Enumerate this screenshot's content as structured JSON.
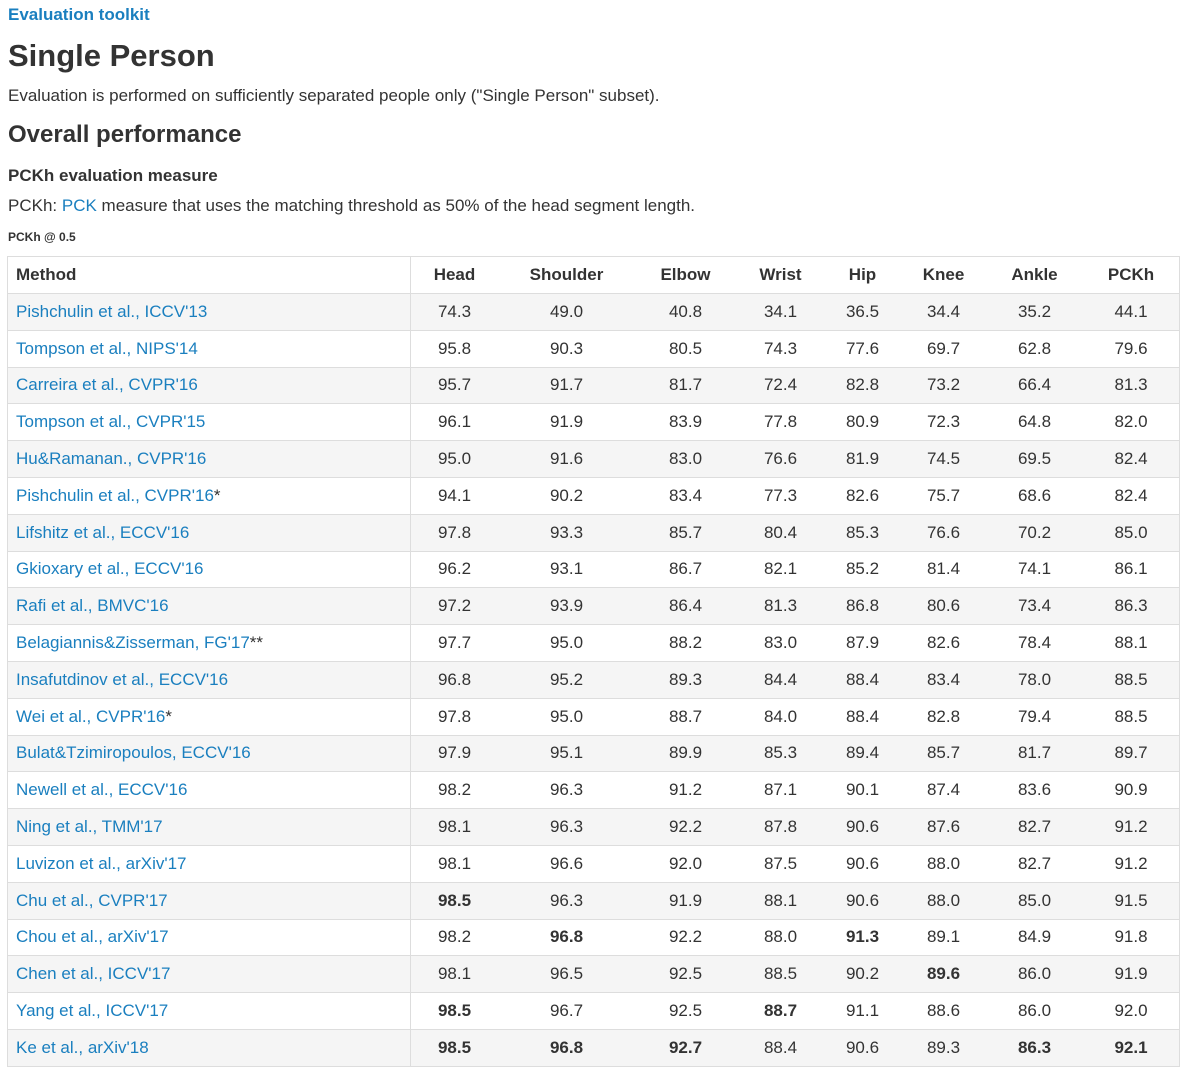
{
  "breadcrumb": "Evaluation toolkit",
  "page_title": "Single Person",
  "intro": "Evaluation is performed on sufficiently separated people only (\"Single Person\" subset).",
  "section_title": "Overall performance",
  "measure": {
    "title": "PCKh evaluation measure",
    "prefix": "PCKh: ",
    "link": "PCK",
    "suffix": " measure that uses the matching threshold as 50% of the head segment length.",
    "threshold_label": "PCKh @ 0.5"
  },
  "table": {
    "columns": [
      "Method",
      "Head",
      "Shoulder",
      "Elbow",
      "Wrist",
      "Hip",
      "Knee",
      "Ankle",
      "PCKh"
    ],
    "rows": [
      {
        "method": "Pishchulin et al., ICCV'13",
        "mark": "",
        "values": [
          "74.3",
          "49.0",
          "40.8",
          "34.1",
          "36.5",
          "34.4",
          "35.2",
          "44.1"
        ],
        "bold": []
      },
      {
        "method": "Tompson et al., NIPS'14",
        "mark": "",
        "values": [
          "95.8",
          "90.3",
          "80.5",
          "74.3",
          "77.6",
          "69.7",
          "62.8",
          "79.6"
        ],
        "bold": []
      },
      {
        "method": "Carreira et al., CVPR'16",
        "mark": "",
        "values": [
          "95.7",
          "91.7",
          "81.7",
          "72.4",
          "82.8",
          "73.2",
          "66.4",
          "81.3"
        ],
        "bold": []
      },
      {
        "method": "Tompson et al., CVPR'15",
        "mark": "",
        "values": [
          "96.1",
          "91.9",
          "83.9",
          "77.8",
          "80.9",
          "72.3",
          "64.8",
          "82.0"
        ],
        "bold": []
      },
      {
        "method": "Hu&Ramanan., CVPR'16",
        "mark": "",
        "values": [
          "95.0",
          "91.6",
          "83.0",
          "76.6",
          "81.9",
          "74.5",
          "69.5",
          "82.4"
        ],
        "bold": []
      },
      {
        "method": "Pishchulin et al., CVPR'16",
        "mark": "*",
        "values": [
          "94.1",
          "90.2",
          "83.4",
          "77.3",
          "82.6",
          "75.7",
          "68.6",
          "82.4"
        ],
        "bold": []
      },
      {
        "method": "Lifshitz et al., ECCV'16",
        "mark": "",
        "values": [
          "97.8",
          "93.3",
          "85.7",
          "80.4",
          "85.3",
          "76.6",
          "70.2",
          "85.0"
        ],
        "bold": []
      },
      {
        "method": "Gkioxary et al., ECCV'16",
        "mark": "",
        "values": [
          "96.2",
          "93.1",
          "86.7",
          "82.1",
          "85.2",
          "81.4",
          "74.1",
          "86.1"
        ],
        "bold": []
      },
      {
        "method": "Rafi et al., BMVC'16",
        "mark": "",
        "values": [
          "97.2",
          "93.9",
          "86.4",
          "81.3",
          "86.8",
          "80.6",
          "73.4",
          "86.3"
        ],
        "bold": []
      },
      {
        "method": "Belagiannis&Zisserman, FG'17",
        "mark": "**",
        "values": [
          "97.7",
          "95.0",
          "88.2",
          "83.0",
          "87.9",
          "82.6",
          "78.4",
          "88.1"
        ],
        "bold": []
      },
      {
        "method": "Insafutdinov et al., ECCV'16",
        "mark": "",
        "values": [
          "96.8",
          "95.2",
          "89.3",
          "84.4",
          "88.4",
          "83.4",
          "78.0",
          "88.5"
        ],
        "bold": []
      },
      {
        "method": "Wei et al., CVPR'16",
        "mark": "*",
        "values": [
          "97.8",
          "95.0",
          "88.7",
          "84.0",
          "88.4",
          "82.8",
          "79.4",
          "88.5"
        ],
        "bold": []
      },
      {
        "method": "Bulat&Tzimiropoulos, ECCV'16",
        "mark": "",
        "values": [
          "97.9",
          "95.1",
          "89.9",
          "85.3",
          "89.4",
          "85.7",
          "81.7",
          "89.7"
        ],
        "bold": []
      },
      {
        "method": "Newell et al., ECCV'16",
        "mark": "",
        "values": [
          "98.2",
          "96.3",
          "91.2",
          "87.1",
          "90.1",
          "87.4",
          "83.6",
          "90.9"
        ],
        "bold": []
      },
      {
        "method": "Ning et al., TMM'17",
        "mark": "",
        "values": [
          "98.1",
          "96.3",
          "92.2",
          "87.8",
          "90.6",
          "87.6",
          "82.7",
          "91.2"
        ],
        "bold": []
      },
      {
        "method": "Luvizon et al., arXiv'17",
        "mark": "",
        "values": [
          "98.1",
          "96.6",
          "92.0",
          "87.5",
          "90.6",
          "88.0",
          "82.7",
          "91.2"
        ],
        "bold": []
      },
      {
        "method": "Chu et al., CVPR'17",
        "mark": "",
        "values": [
          "98.5",
          "96.3",
          "91.9",
          "88.1",
          "90.6",
          "88.0",
          "85.0",
          "91.5"
        ],
        "bold": [
          0
        ]
      },
      {
        "method": "Chou et al., arXiv'17",
        "mark": "",
        "values": [
          "98.2",
          "96.8",
          "92.2",
          "88.0",
          "91.3",
          "89.1",
          "84.9",
          "91.8"
        ],
        "bold": [
          1,
          4
        ]
      },
      {
        "method": "Chen et al., ICCV'17",
        "mark": "",
        "values": [
          "98.1",
          "96.5",
          "92.5",
          "88.5",
          "90.2",
          "89.6",
          "86.0",
          "91.9"
        ],
        "bold": [
          5
        ]
      },
      {
        "method": "Yang et al., ICCV'17",
        "mark": "",
        "values": [
          "98.5",
          "96.7",
          "92.5",
          "88.7",
          "91.1",
          "88.6",
          "86.0",
          "92.0"
        ],
        "bold": [
          0,
          3
        ]
      },
      {
        "method": "Ke et al., arXiv'18",
        "mark": "",
        "values": [
          "98.5",
          "96.8",
          "92.7",
          "88.4",
          "90.6",
          "89.3",
          "86.3",
          "92.1"
        ],
        "bold": [
          0,
          1,
          2,
          6,
          7
        ]
      }
    ]
  }
}
